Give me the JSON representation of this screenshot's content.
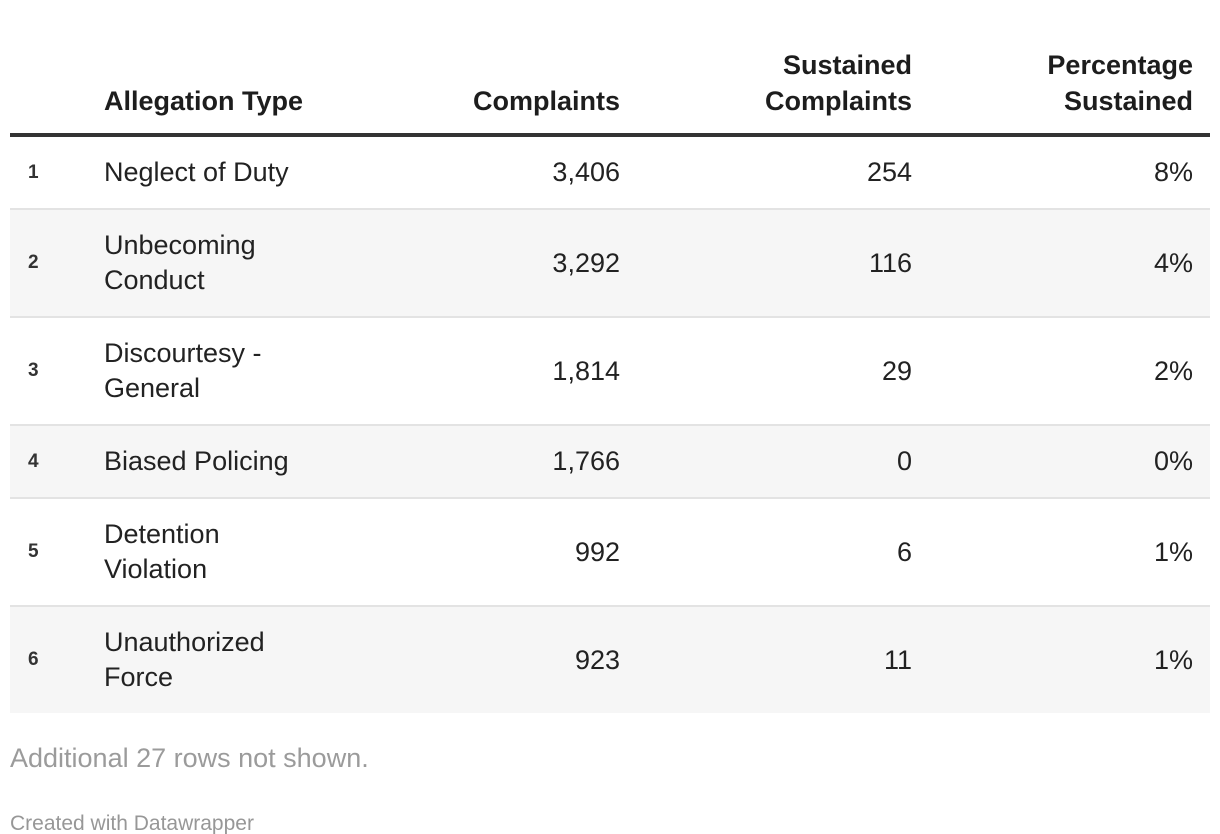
{
  "header": {
    "row_number_label": "",
    "allegation": "Allegation Type",
    "complaints": "Complaints",
    "sustained": "Sustained\nComplaints",
    "percentage": "Percentage\nSustained"
  },
  "rows": [
    {
      "num": "1",
      "allegation": "Neglect of Duty",
      "complaints": "3,406",
      "sustained": "254",
      "percentage": "8%"
    },
    {
      "num": "2",
      "allegation": "Unbecoming\nConduct",
      "complaints": "3,292",
      "sustained": "116",
      "percentage": "4%"
    },
    {
      "num": "3",
      "allegation": "Discourtesy -\nGeneral",
      "complaints": "1,814",
      "sustained": "29",
      "percentage": "2%"
    },
    {
      "num": "4",
      "allegation": "Biased Policing",
      "complaints": "1,766",
      "sustained": "0",
      "percentage": "0%"
    },
    {
      "num": "5",
      "allegation": "Detention\nViolation",
      "complaints": "992",
      "sustained": "6",
      "percentage": "1%"
    },
    {
      "num": "6",
      "allegation": "Unauthorized\nForce",
      "complaints": "923",
      "sustained": "11",
      "percentage": "1%"
    }
  ],
  "footer": {
    "note": "Additional 27 rows not shown.",
    "attribution": "Created with Datawrapper"
  },
  "colors": {
    "text": "#222222",
    "header_text": "#1d1d1d",
    "header_rule": "#333333",
    "row_separator": "#e3e3e3",
    "zebra_stripe": "#f6f6f6",
    "muted_note": "#9b9b9b",
    "attribution": "#979797"
  },
  "chart_data": {
    "type": "table",
    "columns": [
      "Allegation Type",
      "Complaints",
      "Sustained Complaints",
      "Percentage Sustained"
    ],
    "rows": [
      [
        "Neglect of Duty",
        3406,
        254,
        "8%"
      ],
      [
        "Unbecoming Conduct",
        3292,
        116,
        "4%"
      ],
      [
        "Discourtesy - General",
        1814,
        29,
        "2%"
      ],
      [
        "Biased Policing",
        1766,
        0,
        "0%"
      ],
      [
        "Detention Violation",
        992,
        6,
        "1%"
      ],
      [
        "Unauthorized Force",
        923,
        11,
        "1%"
      ]
    ],
    "row_numbers": [
      1,
      2,
      3,
      4,
      5,
      6
    ],
    "note": "Additional 27 rows not shown.",
    "attribution": "Created with Datawrapper",
    "layout_hints": {
      "zebra_striping": "even rows shaded",
      "numeric_columns_align": "right",
      "header_rule": "thick dark line under header"
    }
  }
}
